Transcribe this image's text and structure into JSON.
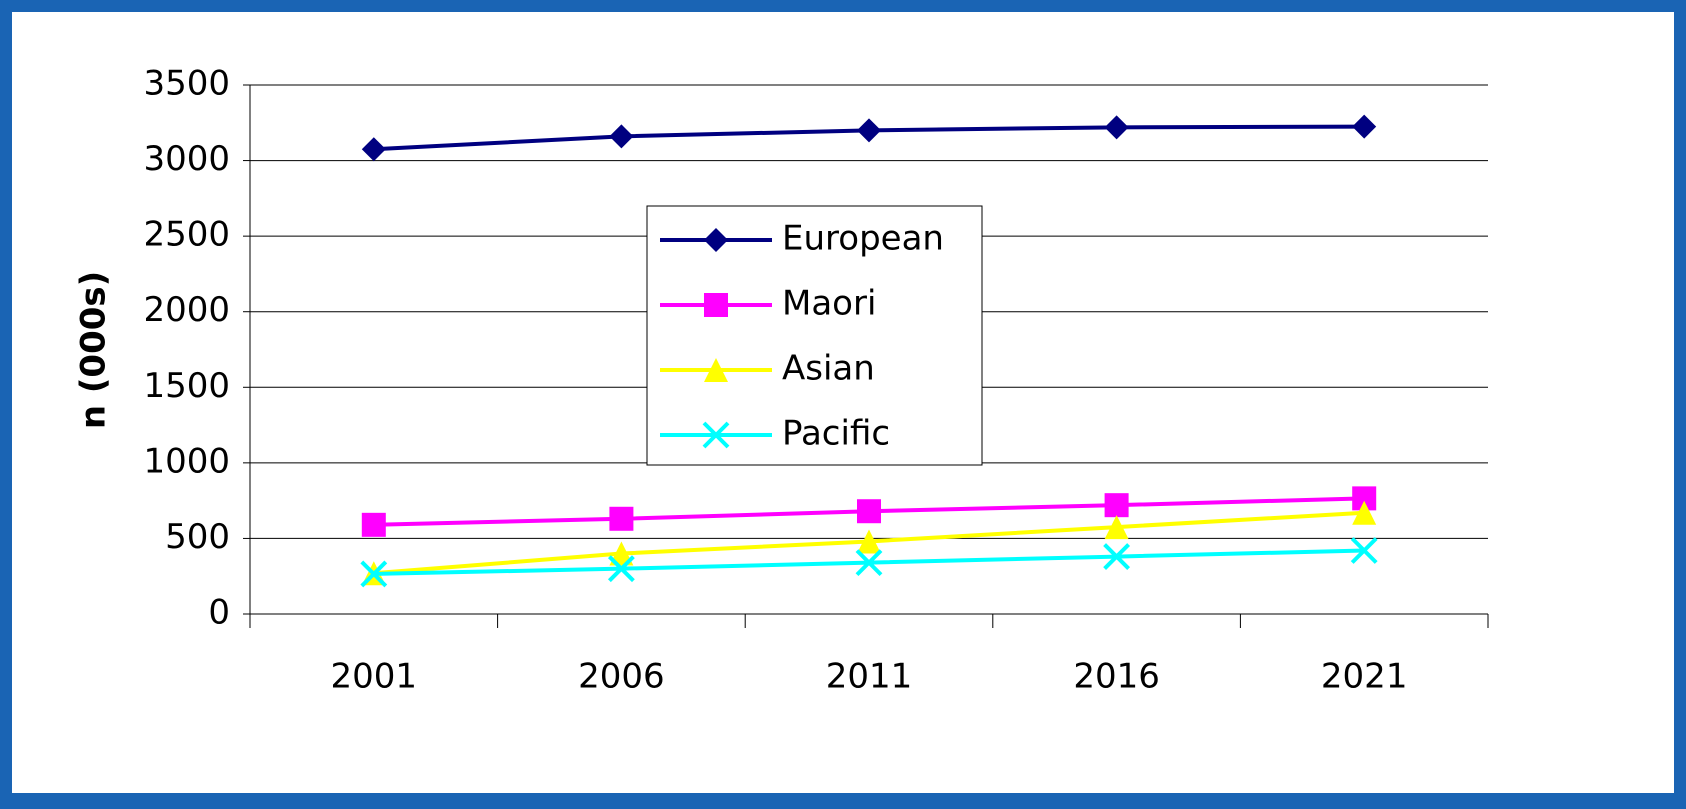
{
  "chart_data": {
    "type": "line",
    "y_label": "n (000s)",
    "categories": [
      "2001",
      "2006",
      "2011",
      "2016",
      "2021"
    ],
    "series": [
      {
        "name": "European",
        "color": "#000080",
        "marker": "diamond",
        "values": [
          3075,
          3160,
          3200,
          3220,
          3225
        ]
      },
      {
        "name": "Maori",
        "color": "#ff00ff",
        "marker": "square",
        "values": [
          590,
          630,
          680,
          720,
          765
        ]
      },
      {
        "name": "Asian",
        "color": "#ffff00",
        "marker": "triangle",
        "values": [
          270,
          400,
          480,
          575,
          670
        ]
      },
      {
        "name": "Pacific",
        "color": "#00ffff",
        "marker": "x",
        "values": [
          265,
          300,
          340,
          380,
          420
        ]
      }
    ],
    "ylim": [
      0,
      3500
    ],
    "yticks": [
      0,
      500,
      1000,
      1500,
      2000,
      2500,
      3000,
      3500
    ],
    "grid": true
  }
}
